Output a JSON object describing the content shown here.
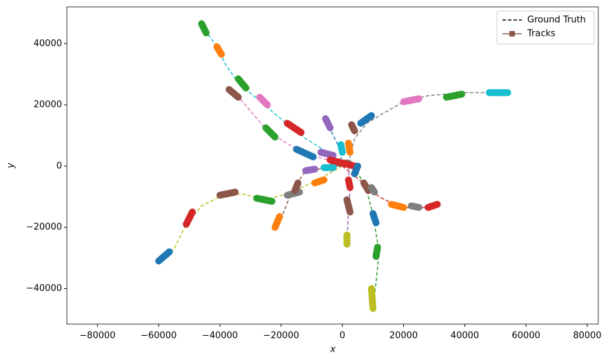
{
  "chart_data": {
    "type": "trajectory",
    "x_label": "x",
    "y_label": "y",
    "xlim": [
      -90000,
      83600
    ],
    "ylim": [
      -51600,
      52000
    ],
    "xticks": [
      {
        "value": -80000,
        "label": "−80000"
      },
      {
        "value": -60000,
        "label": "−60000"
      },
      {
        "value": -40000,
        "label": "−40000"
      },
      {
        "value": -20000,
        "label": "−20000"
      },
      0,
      20000,
      40000,
      60000,
      80000
    ],
    "yticks": [
      {
        "value": -40000,
        "label": "−40000"
      },
      {
        "value": -20000,
        "label": "−20000"
      },
      0,
      20000,
      40000
    ],
    "legend": {
      "position": "upper right",
      "entries": [
        {
          "name": "Ground Truth",
          "color": "#000000",
          "style": "dashed"
        },
        {
          "name": "Tracks",
          "color": "#8c564b",
          "style": "line-square"
        }
      ]
    },
    "ground_truth": [
      {
        "color": "#17becf",
        "x": [
          0,
          -4000,
          -12000,
          -22000,
          -29000,
          -34000,
          -38000,
          -41000,
          -46000
        ],
        "y": [
          0,
          4000,
          9000,
          17000,
          23000,
          27000,
          33000,
          39000,
          46000
        ]
      },
      {
        "color": "#e377c2",
        "x": [
          0,
          -5000,
          -14000,
          -24000,
          -30000,
          -36000
        ],
        "y": [
          0,
          2000,
          5000,
          11000,
          18000,
          25000
        ]
      },
      {
        "color": "#1f77b4",
        "x": [
          0,
          -1000,
          -4000,
          -5000
        ],
        "y": [
          0,
          6000,
          12000,
          15000
        ]
      },
      {
        "color": "#7f7f7f",
        "x": [
          2000,
          4000,
          8000,
          13000,
          20000,
          28000,
          40000,
          53000
        ],
        "y": [
          1000,
          9000,
          14000,
          17000,
          21000,
          23000,
          24000,
          24000
        ]
      },
      {
        "color": "#bcbd22",
        "x": [
          0,
          -9000,
          -18000,
          -25000,
          -33000,
          -40000,
          -46000,
          -51000,
          -55000,
          -60000
        ],
        "y": [
          0,
          -5000,
          -9000,
          -11000,
          -9000,
          -10000,
          -13000,
          -19000,
          -27000,
          -31000
        ]
      },
      {
        "color": "#8c564b",
        "x": [
          0,
          -12000,
          -15000,
          -18000,
          -21000
        ],
        "y": [
          0,
          -1500,
          -6000,
          -12000,
          -20000
        ]
      },
      {
        "color": "#d62728",
        "x": [
          0,
          5000,
          12000,
          18000,
          24000,
          30000
        ],
        "y": [
          0,
          -4000,
          -10000,
          -13000,
          -14000,
          -13000
        ]
      },
      {
        "color": "#2ca02c",
        "x": [
          4000,
          8000,
          10000,
          12000,
          11000,
          10000
        ],
        "y": [
          0,
          -8000,
          -16000,
          -28000,
          -38000,
          -46000
        ]
      },
      {
        "color": "#9467bd",
        "x": [
          2000,
          2500,
          2000,
          1500
        ],
        "y": [
          0,
          -8000,
          -15000,
          -25000
        ]
      }
    ],
    "tracks": [
      {
        "color": "#2ca02c",
        "x": [
          -46000,
          -44500
        ],
        "y": [
          46500,
          43500
        ]
      },
      {
        "color": "#ff7f0e",
        "x": [
          -41000,
          -39500
        ],
        "y": [
          39000,
          36500
        ]
      },
      {
        "color": "#2ca02c",
        "x": [
          -34000,
          -31500
        ],
        "y": [
          28500,
          25500
        ]
      },
      {
        "color": "#e377c2",
        "x": [
          -27000,
          -24500
        ],
        "y": [
          22500,
          20000
        ]
      },
      {
        "color": "#8c564b",
        "x": [
          -37000,
          -34000
        ],
        "y": [
          25000,
          22500
        ]
      },
      {
        "color": "#2ca02c",
        "x": [
          -25000,
          -22000
        ],
        "y": [
          12500,
          9500
        ]
      },
      {
        "color": "#d62728",
        "x": [
          -18000,
          -13500
        ],
        "y": [
          14000,
          11000
        ]
      },
      {
        "color": "#1f77b4",
        "x": [
          -15000,
          -9500
        ],
        "y": [
          5500,
          3000
        ]
      },
      {
        "color": "#9467bd",
        "x": [
          -7000,
          -3000
        ],
        "y": [
          4500,
          3500
        ]
      },
      {
        "color": "#9467bd",
        "x": [
          -5500,
          -4000
        ],
        "y": [
          15500,
          12500
        ]
      },
      {
        "color": "#17becf",
        "x": [
          -500,
          0
        ],
        "y": [
          7000,
          4500
        ]
      },
      {
        "color": "#ff7f0e",
        "x": [
          2000,
          2500
        ],
        "y": [
          7500,
          4500
        ]
      },
      {
        "color": "#8c564b",
        "x": [
          3000,
          4000
        ],
        "y": [
          13500,
          11500
        ]
      },
      {
        "color": "#1f77b4",
        "x": [
          6000,
          9500
        ],
        "y": [
          14000,
          16500
        ]
      },
      {
        "color": "#e377c2",
        "x": [
          20000,
          25000
        ],
        "y": [
          21000,
          22000
        ]
      },
      {
        "color": "#2ca02c",
        "x": [
          34000,
          39000
        ],
        "y": [
          22500,
          23500
        ]
      },
      {
        "color": "#17becf",
        "x": [
          48000,
          54000
        ],
        "y": [
          24000,
          24000
        ]
      },
      {
        "color": "#7f7f7f",
        "x": [
          -3000,
          2000
        ],
        "y": [
          1000,
          1000
        ]
      },
      {
        "color": "#d62728",
        "x": [
          -4000,
          4000
        ],
        "y": [
          2000,
          0
        ]
      },
      {
        "color": "#17becf",
        "x": [
          -6000,
          -3000
        ],
        "y": [
          -500,
          -500
        ]
      },
      {
        "color": "#9467bd",
        "x": [
          -12000,
          -9000
        ],
        "y": [
          -1500,
          -1000
        ]
      },
      {
        "color": "#ff7f0e",
        "x": [
          -9000,
          -6000
        ],
        "y": [
          -5500,
          -4500
        ]
      },
      {
        "color": "#7f7f7f",
        "x": [
          -18000,
          -14000
        ],
        "y": [
          -9500,
          -8500
        ]
      },
      {
        "color": "#8c564b",
        "x": [
          -15500,
          -14500
        ],
        "y": [
          -8000,
          -5500
        ]
      },
      {
        "color": "#2ca02c",
        "x": [
          -28000,
          -23000
        ],
        "y": [
          -10500,
          -11500
        ]
      },
      {
        "color": "#8c564b",
        "x": [
          -40000,
          -35000
        ],
        "y": [
          -9500,
          -8500
        ]
      },
      {
        "color": "#d62728",
        "x": [
          -51000,
          -49000
        ],
        "y": [
          -19000,
          -15000
        ]
      },
      {
        "color": "#1f77b4",
        "x": [
          -60000,
          -56500
        ],
        "y": [
          -31000,
          -28000
        ]
      },
      {
        "color": "#ff7f0e",
        "x": [
          -22000,
          -20500
        ],
        "y": [
          -20000,
          -16500
        ]
      },
      {
        "color": "#1f77b4",
        "x": [
          4000,
          5000
        ],
        "y": [
          -2500,
          0
        ]
      },
      {
        "color": "#d62728",
        "x": [
          2000,
          2500
        ],
        "y": [
          -4500,
          -7000
        ]
      },
      {
        "color": "#8c564b",
        "x": [
          1500,
          2500
        ],
        "y": [
          -11000,
          -15000
        ]
      },
      {
        "color": "#bcbd22",
        "x": [
          1500,
          1500
        ],
        "y": [
          -22500,
          -25500
        ]
      },
      {
        "color": "#8c564b",
        "x": [
          7000,
          8500
        ],
        "y": [
          -5500,
          -8000
        ]
      },
      {
        "color": "#7f7f7f",
        "x": [
          9500,
          10500
        ],
        "y": [
          -7000,
          -8500
        ]
      },
      {
        "color": "#ff7f0e",
        "x": [
          16000,
          20000
        ],
        "y": [
          -12500,
          -13500
        ]
      },
      {
        "color": "#7f7f7f",
        "x": [
          22500,
          25000
        ],
        "y": [
          -13000,
          -13500
        ]
      },
      {
        "color": "#d62728",
        "x": [
          28000,
          31000
        ],
        "y": [
          -13500,
          -12500
        ]
      },
      {
        "color": "#1f77b4",
        "x": [
          10000,
          11000
        ],
        "y": [
          -15500,
          -18500
        ]
      },
      {
        "color": "#2ca02c",
        "x": [
          11500,
          11000
        ],
        "y": [
          -26500,
          -29500
        ]
      },
      {
        "color": "#bcbd22",
        "x": [
          9500,
          10000
        ],
        "y": [
          -40000,
          -46500
        ]
      }
    ]
  }
}
